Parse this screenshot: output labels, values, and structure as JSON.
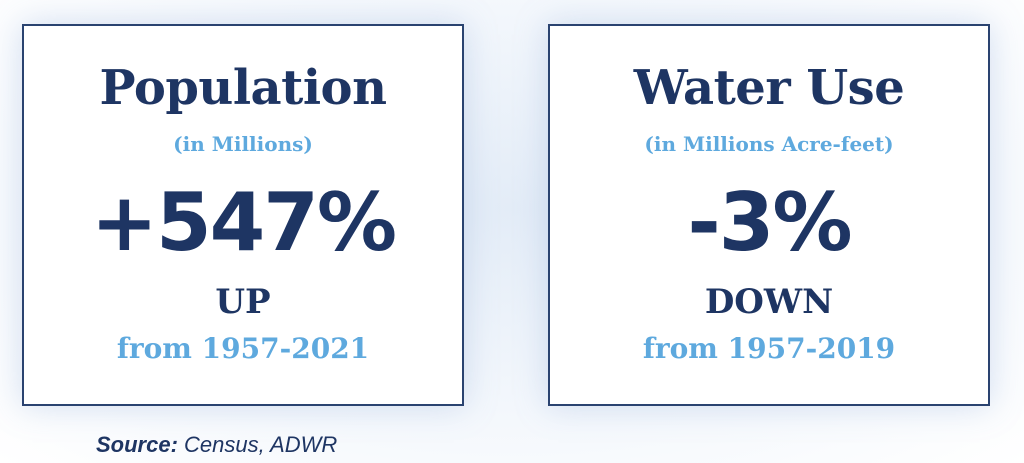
{
  "cards": [
    {
      "title": "Population",
      "subtitle": "(in Millions)",
      "stat": "+547%",
      "direction": "UP",
      "period": "from 1957-2021"
    },
    {
      "title": "Water Use",
      "subtitle": "(in Millions Acre-feet)",
      "stat": "-3%",
      "direction": "DOWN",
      "period": "from 1957-2019"
    }
  ],
  "source": {
    "label": "Source:",
    "text": "Census, ADWR"
  }
}
